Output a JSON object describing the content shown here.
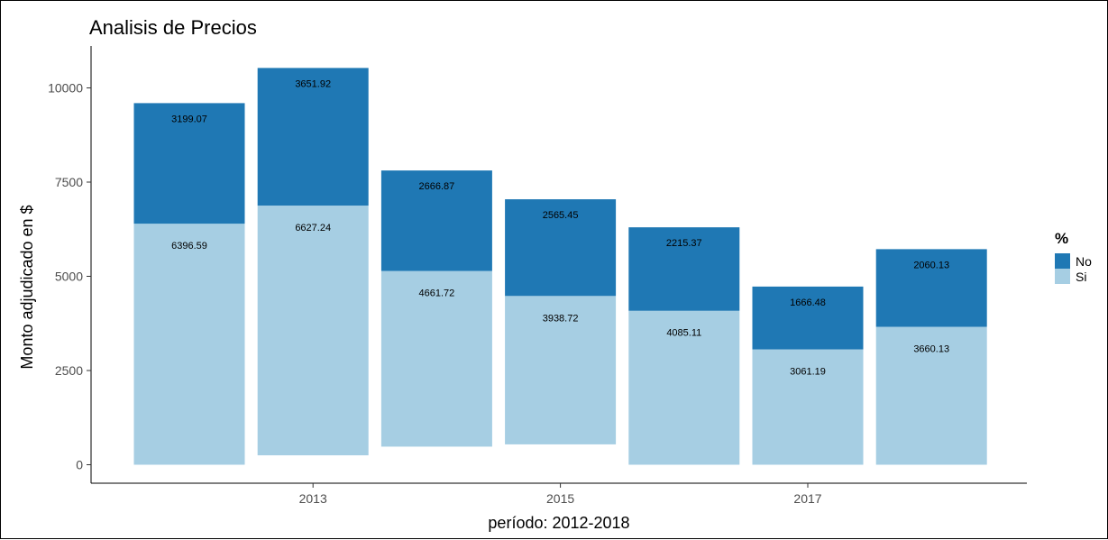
{
  "chart_data": {
    "type": "bar",
    "stacked": true,
    "title": "Analisis de Precios",
    "xlabel": "período: 2012-2018",
    "ylabel": "Monto adjudicado en $",
    "x": [
      2012,
      2013,
      2014,
      2015,
      2016,
      2017,
      2018
    ],
    "x_ticks": [
      "2013",
      "2015",
      "2017"
    ],
    "y_ticks": [
      0,
      2500,
      5000,
      7500,
      10000
    ],
    "y_tick_labels": [
      "0",
      "2500",
      "5000",
      "7500",
      "10000"
    ],
    "xlim": [
      2011.3,
      2018.7
    ],
    "ylim": [
      0,
      11000
    ],
    "grid": false,
    "legend": {
      "title": "%",
      "position": "right"
    },
    "series": [
      {
        "name": "Si",
        "color": "#a6cee3",
        "values": [
          6396.59,
          6627.24,
          4661.72,
          3938.72,
          4085.11,
          3061.19,
          3660.13
        ],
        "labels": [
          "6396.59",
          "6627.24",
          "4661.72",
          "3938.72",
          "4085.11",
          "3061.19",
          "3660.13"
        ],
        "bottoms": [
          0,
          250,
          480,
          540,
          0,
          0,
          0
        ]
      },
      {
        "name": "No",
        "color": "#1f78b4",
        "values": [
          3199.07,
          3651.92,
          2666.87,
          2565.45,
          2215.37,
          1666.48,
          2060.13
        ],
        "labels": [
          "3199.07",
          "3651.92",
          "2666.87",
          "2565.45",
          "2215.37",
          "1666.48",
          "2060.13"
        ]
      }
    ]
  }
}
